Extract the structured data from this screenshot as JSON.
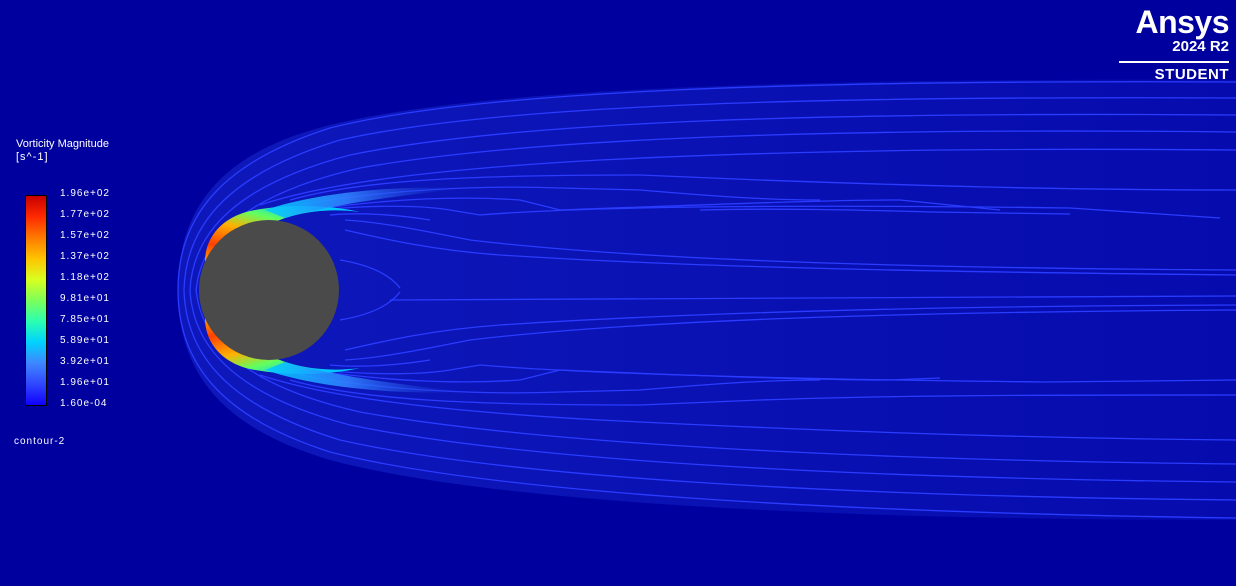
{
  "legend": {
    "title": "Vorticity Magnitude",
    "unit": "[s^-1]",
    "ticks": [
      "1.96e+02",
      "1.77e+02",
      "1.57e+02",
      "1.37e+02",
      "1.18e+02",
      "9.81e+01",
      "7.85e+01",
      "5.89e+01",
      "3.92e+01",
      "1.96e+01",
      "1.60e-04"
    ],
    "colors": [
      "#c80000",
      "#ff2a00",
      "#ff7a00",
      "#ffc400",
      "#d8ff20",
      "#7dff5a",
      "#2affb0",
      "#00d2ff",
      "#3f86ff",
      "#3046ff",
      "#1000ff"
    ]
  },
  "contour_name": "contour-2",
  "logo": {
    "brand": "Ansys",
    "version": "2024 R2",
    "edition": "STUDENT"
  },
  "colors": {
    "background": "#00009f",
    "cylinder": "#4a4a4a",
    "contour_line": "#2a3cff"
  }
}
